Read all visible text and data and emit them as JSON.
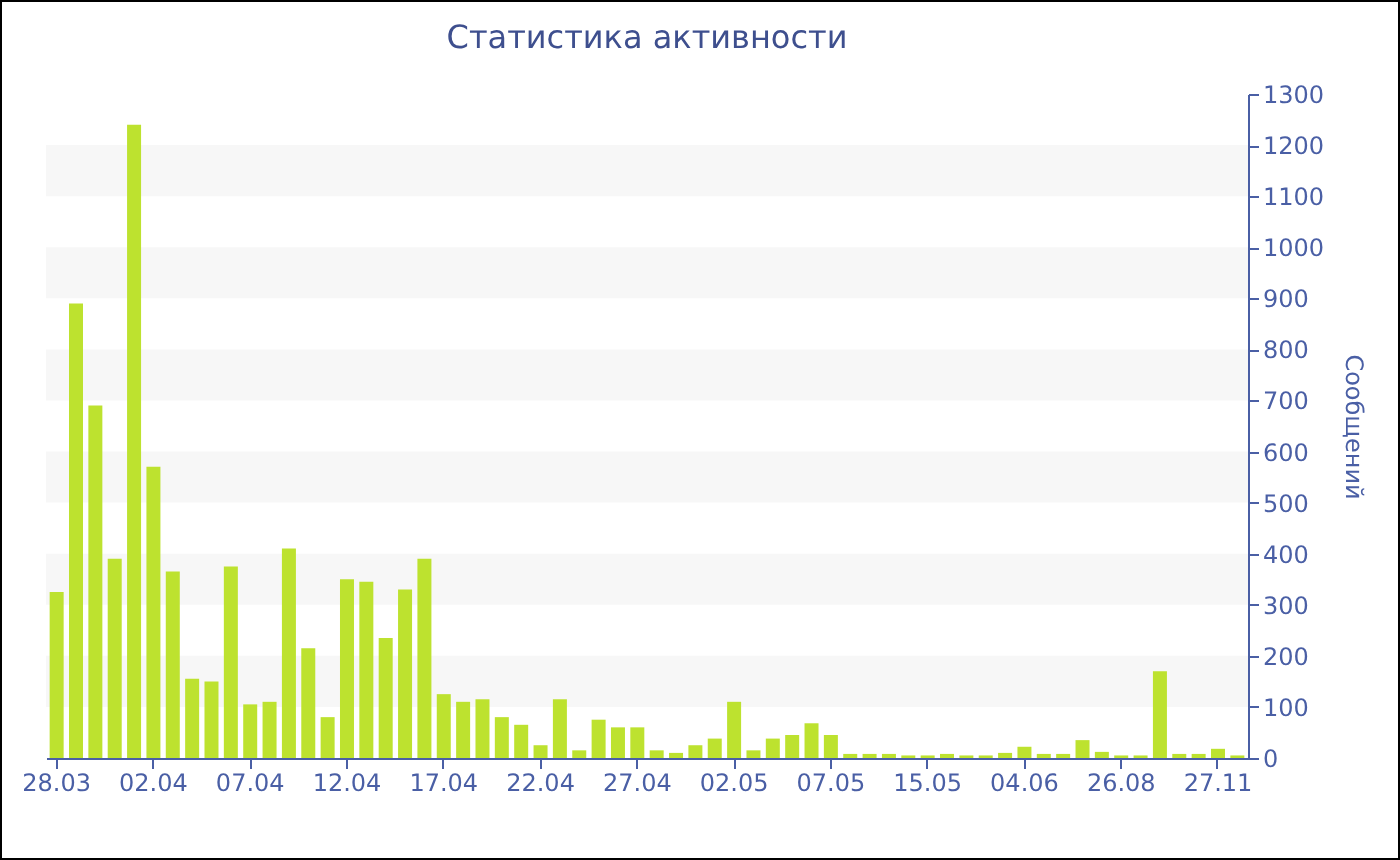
{
  "chart_data": {
    "type": "bar",
    "title": "Статистика активности",
    "ylabel": "Сообщений",
    "categories": [
      "28.03",
      null,
      null,
      null,
      null,
      "02.04",
      null,
      null,
      null,
      null,
      "07.04",
      null,
      null,
      null,
      null,
      "12.04",
      null,
      null,
      null,
      null,
      "17.04",
      null,
      null,
      null,
      null,
      "22.04",
      null,
      null,
      null,
      null,
      "27.04",
      null,
      null,
      null,
      null,
      "02.05",
      null,
      null,
      null,
      null,
      "07.05",
      null,
      null,
      null,
      null,
      "15.05",
      null,
      null,
      null,
      null,
      "04.06",
      null,
      null,
      null,
      null,
      "26.08",
      null,
      null,
      null,
      null,
      "27.11",
      null
    ],
    "values": [
      325,
      890,
      690,
      390,
      1240,
      570,
      365,
      155,
      150,
      375,
      105,
      110,
      410,
      215,
      80,
      350,
      345,
      235,
      330,
      390,
      125,
      110,
      115,
      80,
      65,
      25,
      115,
      15,
      75,
      60,
      60,
      15,
      10,
      25,
      38,
      110,
      15,
      38,
      45,
      68,
      45,
      8,
      8,
      8,
      5,
      5,
      8,
      5,
      5,
      10,
      22,
      8,
      8,
      35,
      12,
      5,
      5,
      170,
      8,
      8,
      18,
      5
    ],
    "color": "#bde22f",
    "ylim": [
      0,
      1300
    ],
    "yticks": [
      0,
      100,
      200,
      300,
      400,
      500,
      600,
      700,
      800,
      900,
      1000,
      1100,
      1200,
      1300
    ],
    "bands": [
      {
        "axis": "y",
        "from": 100,
        "to": 200,
        "color": "#f7f7f7"
      },
      {
        "axis": "y",
        "from": 300,
        "to": 400,
        "color": "#f7f7f7"
      },
      {
        "axis": "y",
        "from": 500,
        "to": 600,
        "color": "#f7f7f7"
      },
      {
        "axis": "y",
        "from": 700,
        "to": 800,
        "color": "#f7f7f7"
      },
      {
        "axis": "y",
        "from": 900,
        "to": 1000,
        "color": "#f7f7f7"
      },
      {
        "axis": "y",
        "from": 1100,
        "to": 1200,
        "color": "#f7f7f7"
      }
    ]
  }
}
